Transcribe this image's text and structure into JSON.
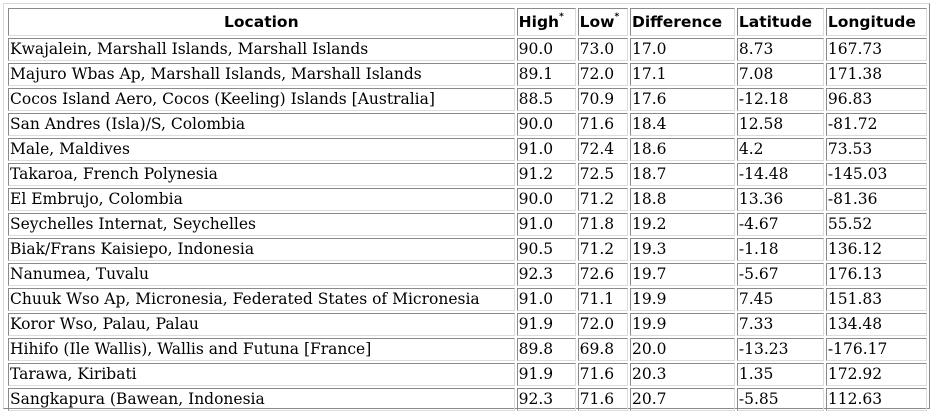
{
  "table": {
    "headers": {
      "location": "Location",
      "high": "High",
      "high_mark": "*",
      "low": "Low",
      "low_mark": "*",
      "difference": "Difference",
      "latitude": "Latitude",
      "longitude": "Longitude"
    },
    "rows": [
      {
        "location": "Kwajalein, Marshall Islands, Marshall Islands",
        "high": "90.0",
        "low": "73.0",
        "difference": "17.0",
        "latitude": "8.73",
        "longitude": "167.73"
      },
      {
        "location": "Majuro Wbas Ap, Marshall Islands, Marshall Islands",
        "high": "89.1",
        "low": "72.0",
        "difference": "17.1",
        "latitude": "7.08",
        "longitude": "171.38"
      },
      {
        "location": "Cocos Island Aero, Cocos (Keeling) Islands [Australia]",
        "high": "88.5",
        "low": "70.9",
        "difference": "17.6",
        "latitude": "-12.18",
        "longitude": "96.83"
      },
      {
        "location": "San Andres (Isla)/S, Colombia",
        "high": "90.0",
        "low": "71.6",
        "difference": "18.4",
        "latitude": "12.58",
        "longitude": "-81.72"
      },
      {
        "location": "Male, Maldives",
        "high": "91.0",
        "low": "72.4",
        "difference": "18.6",
        "latitude": "4.2",
        "longitude": "73.53"
      },
      {
        "location": "Takaroa, French Polynesia",
        "high": "91.2",
        "low": "72.5",
        "difference": "18.7",
        "latitude": "-14.48",
        "longitude": "-145.03"
      },
      {
        "location": "El Embrujo, Colombia",
        "high": "90.0",
        "low": "71.2",
        "difference": "18.8",
        "latitude": "13.36",
        "longitude": "-81.36"
      },
      {
        "location": "Seychelles Internat, Seychelles",
        "high": "91.0",
        "low": "71.8",
        "difference": "19.2",
        "latitude": "-4.67",
        "longitude": "55.52"
      },
      {
        "location": "Biak/Frans Kaisiepo, Indonesia",
        "high": "90.5",
        "low": "71.2",
        "difference": "19.3",
        "latitude": "-1.18",
        "longitude": "136.12"
      },
      {
        "location": "Nanumea, Tuvalu",
        "high": "92.3",
        "low": "72.6",
        "difference": "19.7",
        "latitude": "-5.67",
        "longitude": "176.13"
      },
      {
        "location": "Chuuk Wso Ap, Micronesia, Federated States of Micronesia",
        "high": "91.0",
        "low": "71.1",
        "difference": "19.9",
        "latitude": "7.45",
        "longitude": "151.83"
      },
      {
        "location": "Koror Wso, Palau, Palau",
        "high": "91.9",
        "low": "72.0",
        "difference": "19.9",
        "latitude": "7.33",
        "longitude": "134.48"
      },
      {
        "location": "Hihifo (Ile Wallis), Wallis and Futuna [France]",
        "high": "89.8",
        "low": "69.8",
        "difference": "20.0",
        "latitude": "-13.23",
        "longitude": "-176.17"
      },
      {
        "location": "Tarawa, Kiribati",
        "high": "91.9",
        "low": "71.6",
        "difference": "20.3",
        "latitude": "1.35",
        "longitude": "172.92"
      },
      {
        "location": "Sangkapura (Bawean, Indonesia",
        "high": "92.3",
        "low": "71.6",
        "difference": "20.7",
        "latitude": "-5.85",
        "longitude": "112.63"
      }
    ]
  }
}
